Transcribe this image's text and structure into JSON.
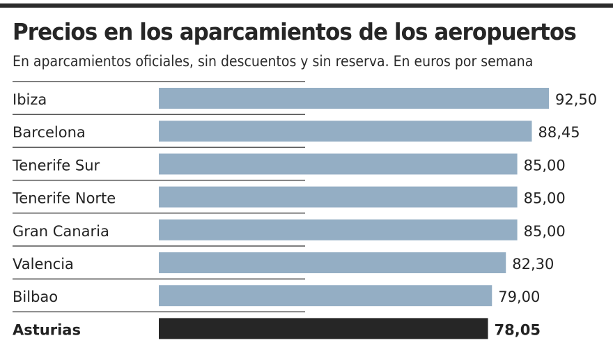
{
  "chart_data": {
    "type": "bar",
    "orientation": "horizontal",
    "title": "Precios en los aparcamientos de los aeropuertos",
    "subtitle": "En aparcamientos oficiales, sin descuentos y sin reserva. En euros por semana",
    "xlabel": "",
    "ylabel": "",
    "unit": "euros por semana",
    "categories": [
      "Ibiza",
      "Barcelona",
      "Tenerife Sur",
      "Tenerife Norte",
      "Gran Canaria",
      "Valencia",
      "Bilbao",
      "Asturias"
    ],
    "values": [
      92.5,
      88.45,
      85.0,
      85.0,
      85.0,
      82.3,
      79.0,
      78.05
    ],
    "value_labels": [
      "92,50",
      "88,45",
      "85,00",
      "85,00",
      "85,00",
      "82,30",
      "79,00",
      "78,05"
    ],
    "highlight": "Asturias",
    "grid": false,
    "legend": "none",
    "colors": {
      "bar": "#94aec4",
      "highlight": "#262626",
      "rule": "#2b2b2b",
      "separator": "#555555"
    }
  }
}
